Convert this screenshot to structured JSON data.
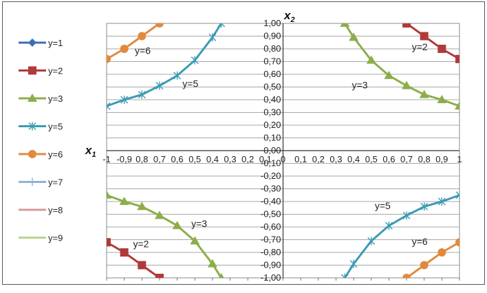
{
  "chart_data": {
    "type": "line",
    "title": "",
    "xlabel": "x",
    "xlabel_sub": "1",
    "ylabel": "x",
    "ylabel_sub": "2",
    "xlim": [
      -1,
      1
    ],
    "ylim": [
      -1,
      1
    ],
    "grid": true,
    "legend_position": "left",
    "x_ticks": [
      "-1",
      "-0,9",
      "0,8",
      "0,7",
      "0,6",
      "0,5",
      "0,4",
      "0,3",
      "0,2",
      "0,1",
      "0",
      "0,1",
      "0,2",
      "0,3",
      "0,4",
      "0,5",
      "0,6",
      "0,7",
      "0,8",
      "0,9",
      "1"
    ],
    "y_ticks": [
      "1,00",
      "0,90",
      "0,80",
      "0,70",
      "0,60",
      "0,50",
      "0,40",
      "0,30",
      "0,20",
      "0,10",
      "0,00",
      "-0,10",
      "-0,20",
      "-0,30",
      "-0,40",
      "-0,50",
      "-0,60",
      "-0,70",
      "-0,80",
      "-0,90",
      "-1,00"
    ],
    "legend": [
      {
        "name": "y=1",
        "color": "#3d6db5",
        "marker": "diamond"
      },
      {
        "name": "y=2",
        "color": "#b03a3a",
        "marker": "square"
      },
      {
        "name": "y=3",
        "color": "#8cae4a",
        "marker": "triangle"
      },
      {
        "name": "y=5",
        "color": "#3b9bb4",
        "marker": "star"
      },
      {
        "name": "y=6",
        "color": "#e08a3c",
        "marker": "circle"
      },
      {
        "name": "y=7",
        "color": "#8fb2d8",
        "marker": "plus"
      },
      {
        "name": "y=8",
        "color": "#d79a96",
        "marker": "none"
      },
      {
        "name": "y=9",
        "color": "#b9d38e",
        "marker": "none"
      }
    ],
    "series": [
      {
        "name": "y=2",
        "color": "#b03a3a",
        "marker": "square",
        "branches": [
          {
            "x": [
              0.7,
              0.8,
              0.9,
              1.0
            ],
            "y": [
              1.0,
              0.9,
              0.8,
              0.72
            ]
          },
          {
            "x": [
              -1.0,
              -0.9,
              -0.8,
              -0.7
            ],
            "y": [
              -0.72,
              -0.8,
              -0.9,
              -1.0
            ]
          }
        ]
      },
      {
        "name": "y=3",
        "color": "#8cae4a",
        "marker": "triangle",
        "branches": [
          {
            "x": [
              0.35,
              0.4,
              0.5,
              0.6,
              0.7,
              0.8,
              0.9,
              1.0
            ],
            "y": [
              1.0,
              0.89,
              0.71,
              0.59,
              0.51,
              0.44,
              0.4,
              0.35
            ]
          },
          {
            "x": [
              -1.0,
              -0.9,
              -0.8,
              -0.7,
              -0.6,
              -0.5,
              -0.4,
              -0.35
            ],
            "y": [
              -0.35,
              -0.4,
              -0.44,
              -0.51,
              -0.59,
              -0.71,
              -0.89,
              -1.0
            ]
          }
        ]
      },
      {
        "name": "y=5",
        "color": "#3b9bb4",
        "marker": "star",
        "branches": [
          {
            "x": [
              -1.0,
              -0.9,
              -0.8,
              -0.7,
              -0.6,
              -0.5,
              -0.4,
              -0.35
            ],
            "y": [
              0.35,
              0.4,
              0.44,
              0.51,
              0.59,
              0.71,
              0.89,
              1.0
            ]
          },
          {
            "x": [
              0.35,
              0.4,
              0.5,
              0.6,
              0.7,
              0.8,
              0.9,
              1.0
            ],
            "y": [
              -1.0,
              -0.89,
              -0.71,
              -0.59,
              -0.51,
              -0.44,
              -0.4,
              -0.35
            ]
          }
        ]
      },
      {
        "name": "y=6",
        "color": "#e08a3c",
        "marker": "circle",
        "branches": [
          {
            "x": [
              -1.0,
              -0.9,
              -0.8,
              -0.7
            ],
            "y": [
              0.72,
              0.8,
              0.9,
              1.0
            ]
          },
          {
            "x": [
              0.7,
              0.8,
              0.9,
              1.0
            ],
            "y": [
              -1.0,
              -0.9,
              -0.8,
              -0.72
            ]
          }
        ]
      }
    ],
    "annotations": [
      {
        "text": "y=2",
        "x": 0.73,
        "y": 0.79
      },
      {
        "text": "y=3",
        "x": 0.39,
        "y": 0.49
      },
      {
        "text": "y=5",
        "x": -0.57,
        "y": 0.5
      },
      {
        "text": "y=6",
        "x": -0.84,
        "y": 0.76
      },
      {
        "text": "y=3",
        "x": -0.52,
        "y": -0.6
      },
      {
        "text": "y=2",
        "x": -0.85,
        "y": -0.76
      },
      {
        "text": "y=5",
        "x": 0.52,
        "y": -0.46
      },
      {
        "text": "y=6",
        "x": 0.73,
        "y": -0.74
      }
    ]
  }
}
